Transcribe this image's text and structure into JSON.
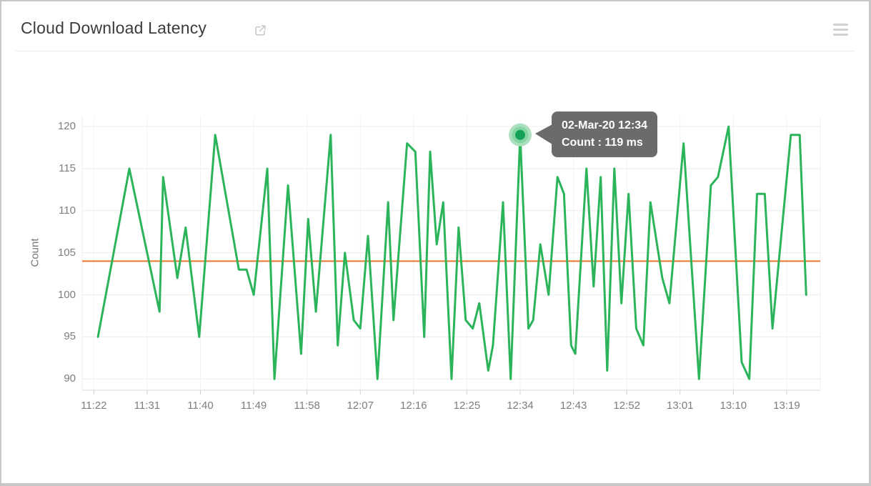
{
  "header": {
    "title": "Cloud Download Latency",
    "external_link_icon": "open-in-new",
    "menu_icon": "hamburger-menu"
  },
  "chart_data": {
    "type": "line",
    "title": "Cloud Download Latency",
    "xlabel": "",
    "ylabel": "Count",
    "unit": "ms",
    "ylim": [
      88,
      122
    ],
    "y_ticks": [
      120,
      115,
      110,
      105,
      100,
      95,
      90
    ],
    "grid": "on",
    "legend": "none",
    "x_axis_start_label": "11:22",
    "x_tick_interval_minutes": 9,
    "x_ticks": [
      {
        "label": "11:22",
        "m": 0
      },
      {
        "label": "11:31",
        "m": 9
      },
      {
        "label": "11:40",
        "m": 18
      },
      {
        "label": "11:49",
        "m": 27
      },
      {
        "label": "11:58",
        "m": 36
      },
      {
        "label": "12:07",
        "m": 45
      },
      {
        "label": "12:16",
        "m": 54
      },
      {
        "label": "12:25",
        "m": 63
      },
      {
        "label": "12:34",
        "m": 72
      },
      {
        "label": "12:43",
        "m": 81
      },
      {
        "label": "12:52",
        "m": 90
      },
      {
        "label": "13:01",
        "m": 99
      },
      {
        "label": "13:10",
        "m": 108
      },
      {
        "label": "13:19",
        "m": 117
      }
    ],
    "series": [
      {
        "name": "Cloud Download Latency",
        "color": "#2cb45a",
        "points_m_v": [
          [
            0.7,
            95
          ],
          [
            6,
            115
          ],
          [
            11.1,
            98
          ],
          [
            11.7,
            114
          ],
          [
            14.1,
            102
          ],
          [
            15.5,
            108
          ],
          [
            17.8,
            95
          ],
          [
            20.5,
            119
          ],
          [
            24.5,
            103
          ],
          [
            25.8,
            103
          ],
          [
            27,
            100
          ],
          [
            29.3,
            115
          ],
          [
            30.5,
            90
          ],
          [
            32.8,
            113
          ],
          [
            35,
            93
          ],
          [
            36.2,
            109
          ],
          [
            37.5,
            98
          ],
          [
            40,
            119
          ],
          [
            41.2,
            94
          ],
          [
            42.4,
            105
          ],
          [
            43.9,
            97
          ],
          [
            45,
            96
          ],
          [
            46.3,
            107
          ],
          [
            47.9,
            90
          ],
          [
            49.7,
            111
          ],
          [
            50.6,
            97
          ],
          [
            52.9,
            118
          ],
          [
            54.3,
            117
          ],
          [
            55.8,
            95
          ],
          [
            56.8,
            117
          ],
          [
            57.9,
            106
          ],
          [
            59,
            111
          ],
          [
            60.4,
            90
          ],
          [
            61.6,
            108
          ],
          [
            62.8,
            97
          ],
          [
            64,
            96
          ],
          [
            65.1,
            99
          ],
          [
            66.6,
            91
          ],
          [
            67.4,
            94
          ],
          [
            69.1,
            111
          ],
          [
            70.4,
            90
          ],
          [
            72,
            119
          ],
          [
            73.4,
            96
          ],
          [
            74.2,
            97
          ],
          [
            75.4,
            106
          ],
          [
            76.8,
            100
          ],
          [
            78.3,
            114
          ],
          [
            79.4,
            112
          ],
          [
            80.6,
            94
          ],
          [
            81.3,
            93
          ],
          [
            83.2,
            115
          ],
          [
            84.4,
            101
          ],
          [
            85.6,
            114
          ],
          [
            86.7,
            91
          ],
          [
            87.9,
            115
          ],
          [
            89.1,
            99
          ],
          [
            90.3,
            112
          ],
          [
            91.6,
            96
          ],
          [
            92.8,
            94
          ],
          [
            94,
            111
          ],
          [
            96,
            102
          ],
          [
            97.2,
            99
          ],
          [
            99.6,
            118
          ],
          [
            102.2,
            90
          ],
          [
            104.2,
            113
          ],
          [
            105.4,
            114
          ],
          [
            107.2,
            120
          ],
          [
            109.4,
            92
          ],
          [
            110.7,
            90
          ],
          [
            112,
            112
          ],
          [
            113.3,
            112
          ],
          [
            114.6,
            96
          ],
          [
            117.7,
            119
          ],
          [
            119.2,
            119
          ],
          [
            120.3,
            100
          ]
        ]
      }
    ],
    "threshold": {
      "value": 104,
      "color": "#e9772e"
    },
    "highlight": {
      "m": 72,
      "v": 119,
      "dot_color": "#12a155",
      "halo_mid_color": "#85d4a3",
      "halo_outer_color": "#abe0bc"
    },
    "tooltip": {
      "line1": "02-Mar-20 12:34",
      "line2": "Count : 119 ms"
    }
  },
  "colors": {
    "grid_h": "#ececec",
    "grid_v": "#f3f3f3",
    "axis_line": "#d8d8d8",
    "axis_tick": "#cfcfcf",
    "tick_text": "#7e7e7e",
    "tooltip_bg": "#6b6b6b"
  }
}
